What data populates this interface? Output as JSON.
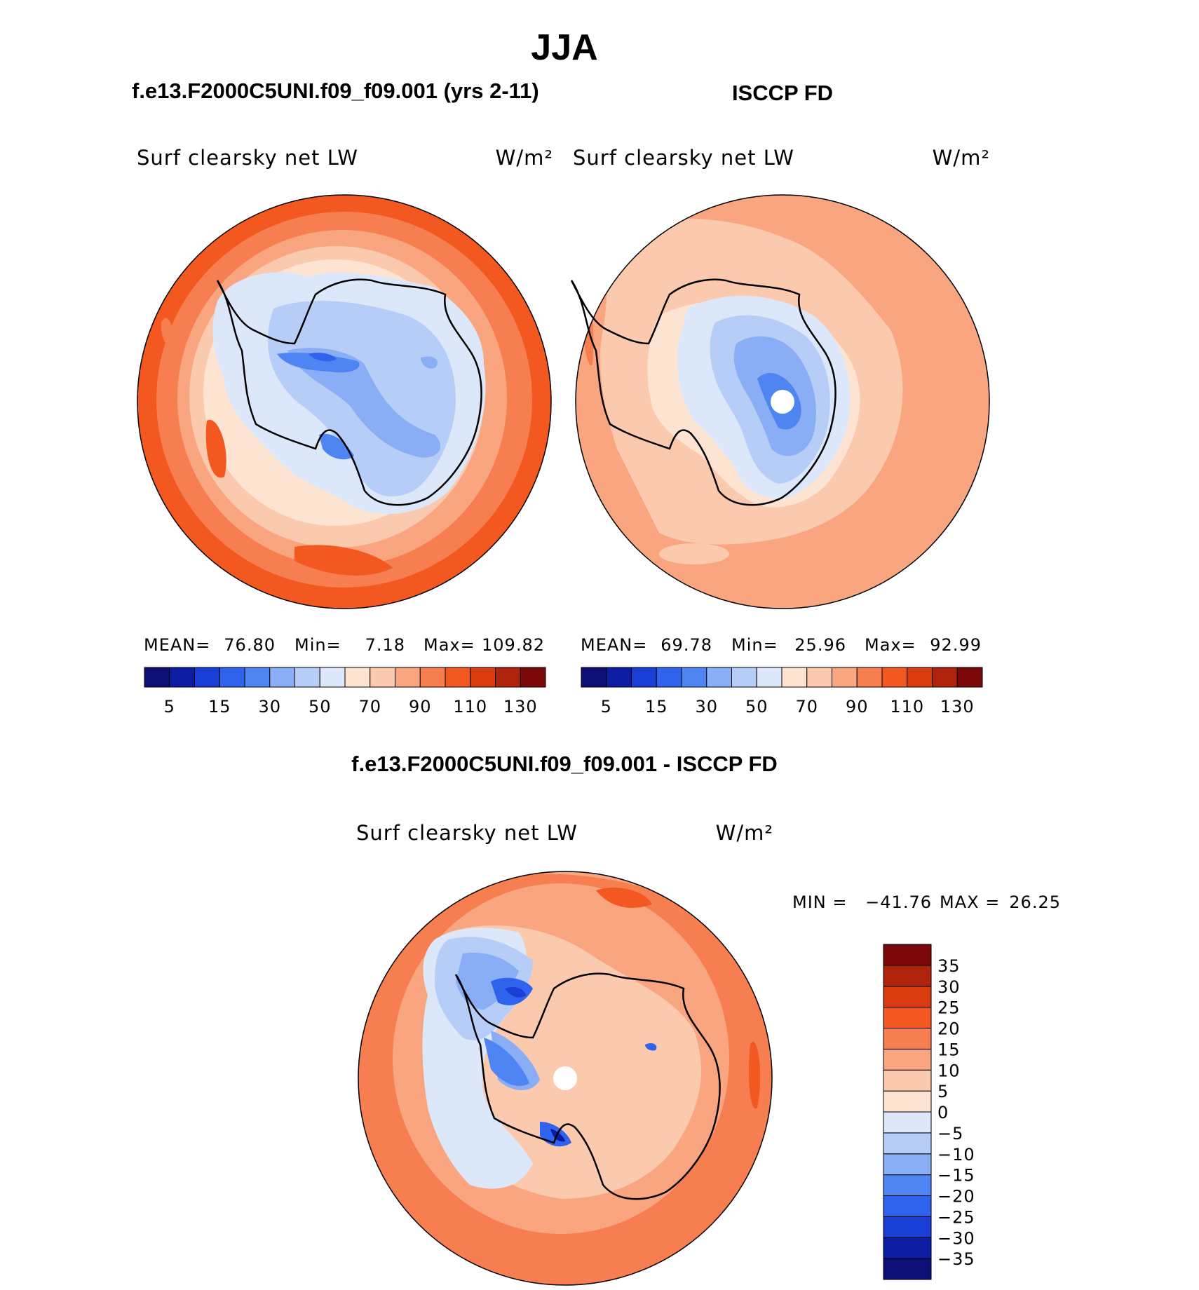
{
  "page": {
    "main_title": "JJA",
    "left_header": "f.e13.F2000C5UNI.f09_f09.001 (yrs 2-11)",
    "right_header": "ISCCP FD",
    "bottom_header": "f.e13.F2000C5UNI.f09_f09.001 - ISCCP FD"
  },
  "chart_data": [
    {
      "type": "heatmap",
      "projection": "south polar stereographic",
      "title": "Surf clearsky net LW",
      "units": "W/m²",
      "stats": {
        "mean_label": "MEAN=",
        "mean": "76.80",
        "min_label": "Min=",
        "min": "7.18",
        "max_label": "Max=",
        "max": "109.82"
      },
      "colorbar": {
        "orientation": "horizontal",
        "levels": [
          5,
          10,
          15,
          20,
          30,
          40,
          50,
          60,
          70,
          80,
          90,
          100,
          110,
          120,
          130
        ],
        "tick_labels": [
          "5",
          "15",
          "30",
          "50",
          "70",
          "90",
          "110",
          "130"
        ],
        "colors": [
          "#0b0f76",
          "#0c1da4",
          "#1a3fd6",
          "#2f63ee",
          "#4f84f3",
          "#89aef5",
          "#b6cdf7",
          "#dce8f9",
          "#fde3d2",
          "#fbc9ad",
          "#f9a680",
          "#f67e50",
          "#f2581f",
          "#d93b0f",
          "#b0230c",
          "#7a0808"
        ]
      }
    },
    {
      "type": "heatmap",
      "projection": "south polar stereographic",
      "title": "Surf clearsky net LW",
      "units": "W/m²",
      "stats": {
        "mean_label": "MEAN=",
        "mean": "69.78",
        "min_label": "Min=",
        "min": "25.96",
        "max_label": "Max=",
        "max": "92.99"
      },
      "colorbar": {
        "orientation": "horizontal",
        "levels": [
          5,
          10,
          15,
          20,
          30,
          40,
          50,
          60,
          70,
          80,
          90,
          100,
          110,
          120,
          130
        ],
        "tick_labels": [
          "5",
          "15",
          "30",
          "50",
          "70",
          "90",
          "110",
          "130"
        ],
        "colors": [
          "#0b0f76",
          "#0c1da4",
          "#1a3fd6",
          "#2f63ee",
          "#4f84f3",
          "#89aef5",
          "#b6cdf7",
          "#dce8f9",
          "#fde3d2",
          "#fbc9ad",
          "#f9a680",
          "#f67e50",
          "#f2581f",
          "#d93b0f",
          "#b0230c",
          "#7a0808"
        ]
      }
    },
    {
      "type": "heatmap",
      "projection": "south polar stereographic",
      "title": "Surf clearsky net LW",
      "units": "W/m²",
      "stats": {
        "min_label": "MIN =",
        "min": "−41.76",
        "max_label": "MAX =",
        "max": "26.25"
      },
      "colorbar": {
        "orientation": "vertical",
        "levels": [
          -35,
          -30,
          -25,
          -20,
          -15,
          -10,
          -5,
          0,
          5,
          10,
          15,
          20,
          25,
          30,
          35
        ],
        "tick_labels": [
          "35",
          "30",
          "25",
          "20",
          "15",
          "10",
          "5",
          "0",
          "−5",
          "−10",
          "−15",
          "−20",
          "−25",
          "−30",
          "−35"
        ],
        "colors": [
          "#0b0f76",
          "#0c1da4",
          "#1a3fd6",
          "#2f63ee",
          "#4f84f3",
          "#89aef5",
          "#b6cdf7",
          "#dce8f9",
          "#fde3d2",
          "#fbc9ad",
          "#f9a680",
          "#f67e50",
          "#f2581f",
          "#d93b0f",
          "#b0230c",
          "#7a0808"
        ]
      }
    }
  ]
}
